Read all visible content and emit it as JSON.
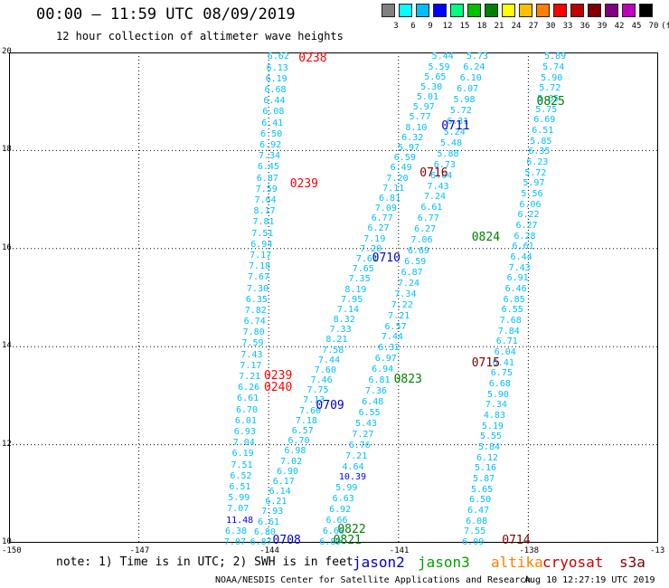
{
  "title": "00:00 – 11:59 UTC 08/09/2019",
  "subtitle": "12 hour collection of altimeter wave heights",
  "colorbar": {
    "labels": [
      "3",
      "6",
      "9",
      "12",
      "15",
      "18",
      "21",
      "24",
      "27",
      "30",
      "33",
      "36",
      "39",
      "42",
      "45",
      "70",
      "(ft)"
    ],
    "colors": [
      "#808080",
      "#00ffff",
      "#00bfff",
      "#0000ff",
      "#00ff80",
      "#00c000",
      "#008000",
      "#ffff00",
      "#ffc000",
      "#ff8000",
      "#ff0000",
      "#c00000",
      "#800000",
      "#800080",
      "#c000c0",
      "#000000"
    ]
  },
  "axes": {
    "y_ticks": [
      "20",
      "18",
      "16",
      "14",
      "12",
      "10"
    ],
    "x_ticks": [
      "-150",
      "-147",
      "-144",
      "-141",
      "-138",
      "-13"
    ]
  },
  "note": "note: 1) Time is in UTC; 2) SWH is in feet",
  "satellites": [
    {
      "name": "jason2",
      "color": "#0000cc"
    },
    {
      "name": "jason3",
      "color": "#00a000"
    },
    {
      "name": "altika",
      "color": "#ff8000"
    },
    {
      "name": "cryosat",
      "color": "#cc0000"
    },
    {
      "name": "s3a",
      "color": "#800000"
    }
  ],
  "credit": "NOAA/NESDIS Center for Satellite Applications and Research",
  "timestamp": "Aug 10 12:27:19 UTC 2019",
  "chart_data": {
    "type": "scatter",
    "xlim": [
      -150,
      -135
    ],
    "ylim": [
      10,
      20
    ],
    "grid": true,
    "tracks": [
      {
        "x0": -144.8,
        "y0": 10.0,
        "x1": -143.8,
        "y1": 19.9,
        "color": "#00bfff",
        "values": [
          "7.07",
          "6.38",
          "11.48",
          "7.07",
          "5.99",
          "6.51",
          "6.52",
          "7.51",
          "6.19",
          "7.04",
          "6.93",
          "6.01",
          "6.70",
          "6.61",
          "6.26",
          "7.21",
          "7.17",
          "7.43",
          "7.59",
          "7.80",
          "6.74",
          "7.82",
          "6.35",
          "7.30",
          "7.67",
          "7.18",
          "7.17",
          "6.94",
          "7.51",
          "7.81",
          "8.17",
          "7.64",
          "7.59",
          "6.87",
          "6.45",
          "7.34",
          "6.92",
          "6.50",
          "6.41",
          "6.08",
          "6.44",
          "6.68",
          "6.19",
          "6.13",
          "6.62"
        ]
      },
      {
        "x0": -144.2,
        "y0": 10.0,
        "x1": -140.0,
        "y1": 19.9,
        "color": "#00bfff",
        "values": [
          "6.87",
          "6.80",
          "6.61",
          "7.93",
          "6.21",
          "6.14",
          "6.17",
          "6.90",
          "7.02",
          "6.98",
          "6.70",
          "6.57",
          "7.18",
          "7.60",
          "7.13",
          "7.75",
          "7.46",
          "7.60",
          "7.44",
          "7.58",
          "8.21",
          "7.33",
          "8.32",
          "7.14",
          "7.95",
          "8.19",
          "7.35",
          "7.65",
          "7.61",
          "7.20",
          "7.19",
          "6.27",
          "6.77",
          "7.09",
          "6.81",
          "7.11",
          "7.20",
          "6.49",
          "6.59",
          "5.97",
          "6.32",
          "8.10",
          "5.77",
          "5.97",
          "5.01",
          "5.30",
          "5.65",
          "5.59",
          "5.44"
        ]
      },
      {
        "x0": -142.6,
        "y0": 10.0,
        "x1": -139.2,
        "y1": 19.9,
        "color": "#00bfff",
        "values": [
          "6.89",
          "6.60",
          "6.66",
          "6.92",
          "6.63",
          "5.99",
          "10.39",
          "4.64",
          "7.21",
          "6.76",
          "7.27",
          "5.43",
          "6.55",
          "6.48",
          "7.36",
          "6.81",
          "6.94",
          "6.97",
          "6.32",
          "7.44",
          "6.57",
          "7.21",
          "7.22",
          "7.34",
          "7.24",
          "6.87",
          "6.59",
          "6.69",
          "7.06",
          "6.27",
          "6.77",
          "6.61",
          "7.24",
          "7.43",
          "6.64",
          "6.73",
          "5.88",
          "5.48",
          "5.24",
          "6.31",
          "5.72",
          "5.98",
          "6.07",
          "6.10",
          "6.24",
          "5.73"
        ]
      },
      {
        "x0": -139.3,
        "y0": 10.0,
        "x1": -137.4,
        "y1": 19.9,
        "color": "#00bfff",
        "values": [
          "6.09",
          "7.55",
          "6.08",
          "6.47",
          "6.50",
          "5.65",
          "5.87",
          "5.16",
          "6.12",
          "5.84",
          "5.55",
          "5.19",
          "4.83",
          "7.34",
          "5.90",
          "6.68",
          "6.75",
          "6.41",
          "6.04",
          "6.71",
          "7.84",
          "7.68",
          "6.55",
          "6.85",
          "6.46",
          "6.91",
          "7.43",
          "6.44",
          "6.61",
          "6.28",
          "6.27",
          "6.22",
          "6.06",
          "5.56",
          "5.97",
          "5.72",
          "6.23",
          "6.35",
          "5.85",
          "6.51",
          "6.69",
          "5.75",
          "5.65",
          "5.72",
          "5.90",
          "5.74",
          "5.89"
        ]
      }
    ],
    "time_labels": [
      {
        "text": "0238",
        "lon": -143.1,
        "lat": 19.88,
        "color": "#ff0000"
      },
      {
        "text": "0239",
        "lon": -143.3,
        "lat": 17.3,
        "color": "#ff0000"
      },
      {
        "text": "0239",
        "lon": -143.9,
        "lat": 13.4,
        "color": "#ff0000"
      },
      {
        "text": "0240",
        "lon": -143.9,
        "lat": 13.15,
        "color": "#ff0000"
      },
      {
        "text": "0825",
        "lon": -137.6,
        "lat": 18.98,
        "color": "#008000"
      },
      {
        "text": "0824",
        "lon": -139.1,
        "lat": 16.21,
        "color": "#008000"
      },
      {
        "text": "0823",
        "lon": -140.9,
        "lat": 13.33,
        "color": "#008000"
      },
      {
        "text": "0822",
        "lon": -142.2,
        "lat": 10.25,
        "color": "#008000"
      },
      {
        "text": "0821",
        "lon": -142.3,
        "lat": 10.04,
        "color": "#008000"
      },
      {
        "text": "0711",
        "lon": -139.8,
        "lat": 18.49,
        "color": "#0000cc"
      },
      {
        "text": "0710",
        "lon": -141.4,
        "lat": 15.8,
        "color": "#0000cc"
      },
      {
        "text": "0709",
        "lon": -142.7,
        "lat": 12.78,
        "color": "#0000cc"
      },
      {
        "text": "0708",
        "lon": -143.7,
        "lat": 10.04,
        "color": "#0000cc"
      },
      {
        "text": "0716",
        "lon": -140.3,
        "lat": 17.52,
        "color": "#800000"
      },
      {
        "text": "0715",
        "lon": -139.1,
        "lat": 13.66,
        "color": "#800000"
      },
      {
        "text": "0714",
        "lon": -138.4,
        "lat": 10.04,
        "color": "#800000"
      }
    ]
  }
}
